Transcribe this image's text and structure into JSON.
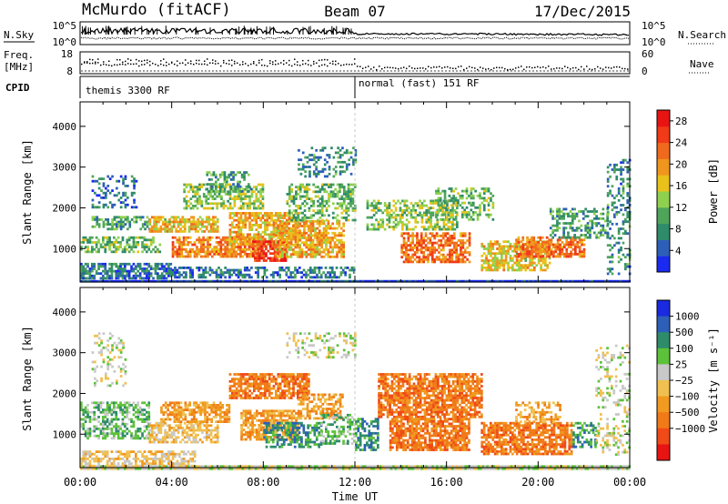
{
  "header": {
    "station": "McMurdo (fitACF)",
    "beam": "Beam 07",
    "date": "17/Dec/2015"
  },
  "noise_panel": {
    "left_label": "N.Sky",
    "right_label": "N.Search",
    "left_ticks": [
      "10^5",
      "10^0"
    ],
    "right_ticks": [
      "10^5",
      "10^0"
    ]
  },
  "freq_panel": {
    "left_label_1": "Freq.",
    "left_label_2": "[MHz]",
    "right_label": "Nave",
    "left_ticks": [
      "18",
      "8"
    ],
    "right_ticks": [
      "60",
      "0"
    ]
  },
  "cpid": {
    "label": "CPID",
    "segments": [
      {
        "start_hour": 0,
        "text": "themis 3300 RF"
      },
      {
        "start_hour": 12,
        "text": "normal (fast) 151 RF"
      }
    ]
  },
  "chart_data": [
    {
      "type": "heatmap",
      "name": "power",
      "ylabel": "Slant Range [km]",
      "xlim": [
        0,
        24
      ],
      "ylim": [
        180,
        4600
      ],
      "yticks": [
        1000,
        2000,
        3000,
        4000
      ],
      "colorbar": {
        "label": "Power [dB]",
        "ticks": [
          "4",
          "8",
          "12",
          "16",
          "20",
          "24",
          "28"
        ],
        "range": [
          0,
          30
        ],
        "colors": [
          "#1a2af0",
          "#2e5fb8",
          "#2f8c6a",
          "#4ea55a",
          "#8fd14f",
          "#e8c21a",
          "#f0961e",
          "#f06a1e",
          "#f03a18",
          "#e81414"
        ]
      },
      "cells": [
        {
          "t0": 0.0,
          "t1": 24.0,
          "r0": 180,
          "r1": 230,
          "v": 2,
          "d": 1.0
        },
        {
          "t0": 0.0,
          "t1": 4.0,
          "r0": 300,
          "r1": 650,
          "v": 6,
          "d": 0.7
        },
        {
          "t0": 0.0,
          "t1": 3.5,
          "r0": 900,
          "r1": 1300,
          "v": 12,
          "d": 0.55
        },
        {
          "t0": 0.5,
          "t1": 3.0,
          "r0": 1500,
          "r1": 1800,
          "v": 10,
          "d": 0.45
        },
        {
          "t0": 0.5,
          "t1": 2.5,
          "r0": 2000,
          "r1": 2800,
          "v": 6,
          "d": 0.3
        },
        {
          "t0": 3.0,
          "t1": 6.0,
          "r0": 1400,
          "r1": 1800,
          "v": 18,
          "d": 0.75
        },
        {
          "t0": 4.0,
          "t1": 8.0,
          "r0": 800,
          "r1": 1300,
          "v": 22,
          "d": 0.75
        },
        {
          "t0": 4.5,
          "t1": 8.0,
          "r0": 2000,
          "r1": 2600,
          "v": 14,
          "d": 0.55
        },
        {
          "t0": 5.5,
          "t1": 7.5,
          "r0": 2400,
          "r1": 2900,
          "v": 10,
          "d": 0.45
        },
        {
          "t0": 6.5,
          "t1": 9.5,
          "r0": 1100,
          "r1": 1900,
          "v": 20,
          "d": 0.7
        },
        {
          "t0": 7.5,
          "t1": 9.0,
          "r0": 700,
          "r1": 1200,
          "v": 28,
          "d": 0.8
        },
        {
          "t0": 8.5,
          "t1": 11.5,
          "r0": 800,
          "r1": 1700,
          "v": 20,
          "d": 0.7
        },
        {
          "t0": 9.0,
          "t1": 12.0,
          "r0": 1700,
          "r1": 2600,
          "v": 12,
          "d": 0.45
        },
        {
          "t0": 9.5,
          "t1": 12.0,
          "r0": 2800,
          "r1": 3500,
          "v": 8,
          "d": 0.3
        },
        {
          "t0": 4.0,
          "t1": 12.0,
          "r0": 280,
          "r1": 560,
          "v": 6,
          "d": 0.55
        },
        {
          "t0": 12.5,
          "t1": 16.5,
          "r0": 1500,
          "r1": 2200,
          "v": 14,
          "d": 0.5
        },
        {
          "t0": 14.0,
          "t1": 17.0,
          "r0": 700,
          "r1": 1400,
          "v": 24,
          "d": 0.65
        },
        {
          "t0": 15.5,
          "t1": 18.0,
          "r0": 1700,
          "r1": 2500,
          "v": 12,
          "d": 0.45
        },
        {
          "t0": 17.5,
          "t1": 20.5,
          "r0": 500,
          "r1": 1200,
          "v": 18,
          "d": 0.6
        },
        {
          "t0": 19.0,
          "t1": 22.0,
          "r0": 800,
          "r1": 1300,
          "v": 24,
          "d": 0.7
        },
        {
          "t0": 20.5,
          "t1": 23.0,
          "r0": 1300,
          "r1": 2000,
          "v": 10,
          "d": 0.45
        },
        {
          "t0": 23.0,
          "t1": 24.0,
          "r0": 400,
          "r1": 3200,
          "v": 8,
          "d": 0.3
        }
      ]
    },
    {
      "type": "heatmap",
      "name": "velocity",
      "xlabel": "Time UT",
      "ylabel": "Slant Range [km]",
      "xlim": [
        0,
        24
      ],
      "xticks": [
        "00:00",
        "04:00",
        "08:00",
        "12:00",
        "16:00",
        "20:00",
        "00:00"
      ],
      "ylim": [
        180,
        4600
      ],
      "yticks": [
        1000,
        2000,
        3000,
        4000
      ],
      "colorbar": {
        "label": "Velocity [m s⁻¹]",
        "ticks": [
          "1000",
          "500",
          "100",
          "25",
          "−25",
          "−100",
          "−500",
          "−1000"
        ],
        "colors": [
          "#1a2ae0",
          "#2e5fb8",
          "#2f8c6a",
          "#5cc23a",
          "#c8c8c8",
          "#f0c050",
          "#f09a20",
          "#f07a18",
          "#f04a18",
          "#e81414"
        ]
      },
      "cells": [
        {
          "t0": 0.0,
          "t1": 24.0,
          "r0": 180,
          "r1": 240,
          "v": 4,
          "d": 1.0
        },
        {
          "t0": 0.0,
          "t1": 5.0,
          "r0": 250,
          "r1": 600,
          "v": 5,
          "d": 0.6
        },
        {
          "t0": 0.0,
          "t1": 3.0,
          "r0": 900,
          "r1": 1800,
          "v": 3,
          "d": 0.55
        },
        {
          "t0": 0.5,
          "t1": 2.0,
          "r0": 2200,
          "r1": 3500,
          "v": 4,
          "d": 0.25
        },
        {
          "t0": 3.0,
          "t1": 6.0,
          "r0": 800,
          "r1": 1300,
          "v": 5,
          "d": 0.6
        },
        {
          "t0": 3.5,
          "t1": 6.5,
          "r0": 1300,
          "r1": 1800,
          "v": 6,
          "d": 0.65
        },
        {
          "t0": 6.5,
          "t1": 10.0,
          "r0": 1900,
          "r1": 2500,
          "v": 7,
          "d": 0.75
        },
        {
          "t0": 7.0,
          "t1": 9.5,
          "r0": 900,
          "r1": 1600,
          "v": 6,
          "d": 0.7
        },
        {
          "t0": 8.0,
          "t1": 10.5,
          "r0": 700,
          "r1": 1300,
          "v": 2,
          "d": 0.55
        },
        {
          "t0": 9.5,
          "t1": 11.5,
          "r0": 1400,
          "r1": 2000,
          "v": 6,
          "d": 0.6
        },
        {
          "t0": 10.5,
          "t1": 12.0,
          "r0": 800,
          "r1": 1500,
          "v": 3,
          "d": 0.5
        },
        {
          "t0": 9.0,
          "t1": 12.0,
          "r0": 2900,
          "r1": 3500,
          "v": 4,
          "d": 0.3
        },
        {
          "t0": 12.0,
          "t1": 13.0,
          "r0": 600,
          "r1": 1400,
          "v": 2,
          "d": 0.55
        },
        {
          "t0": 13.0,
          "t1": 17.5,
          "r0": 1400,
          "r1": 2500,
          "v": 7,
          "d": 0.75
        },
        {
          "t0": 13.5,
          "t1": 17.0,
          "r0": 600,
          "r1": 1400,
          "v": 7,
          "d": 0.8
        },
        {
          "t0": 17.5,
          "t1": 21.5,
          "r0": 500,
          "r1": 1300,
          "v": 7,
          "d": 0.75
        },
        {
          "t0": 19.0,
          "t1": 21.0,
          "r0": 1300,
          "r1": 1800,
          "v": 6,
          "d": 0.5
        },
        {
          "t0": 21.5,
          "t1": 22.5,
          "r0": 700,
          "r1": 1300,
          "v": 2,
          "d": 0.5
        },
        {
          "t0": 22.5,
          "t1": 24.0,
          "r0": 500,
          "r1": 3200,
          "v": 4,
          "d": 0.25
        }
      ]
    }
  ]
}
